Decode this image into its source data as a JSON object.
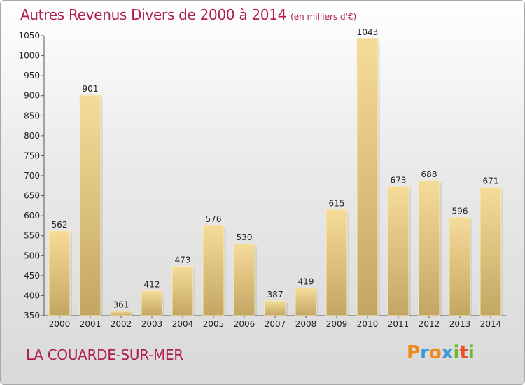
{
  "chart_data": {
    "type": "bar",
    "title": "Autres Revenus Divers de 2000 à 2014",
    "subtitle": "(en milliers d'€)",
    "categories": [
      "2000",
      "2001",
      "2002",
      "2003",
      "2004",
      "2005",
      "2006",
      "2007",
      "2008",
      "2009",
      "2010",
      "2011",
      "2012",
      "2013",
      "2014"
    ],
    "values": [
      562,
      901,
      361,
      412,
      473,
      576,
      530,
      387,
      419,
      615,
      1043,
      673,
      688,
      596,
      671
    ],
    "ylim": [
      350,
      1050
    ],
    "yticks": [
      350,
      400,
      450,
      500,
      550,
      600,
      650,
      700,
      750,
      800,
      850,
      900,
      950,
      1000,
      1050
    ],
    "grid": false,
    "xlabel": "",
    "ylabel": "",
    "bar_color": "#dcc07a"
  },
  "footer": {
    "place": "LA COUARDE-SUR-MER",
    "logo_letters": [
      "P",
      "r",
      "o",
      "x",
      "i",
      "t",
      "i"
    ],
    "logo_colors": [
      "#f08a1c",
      "#3a9ad8",
      "#f08a1c",
      "#3a9ad8",
      "#6ab82e",
      "#e8502a",
      "#6ab82e"
    ]
  }
}
